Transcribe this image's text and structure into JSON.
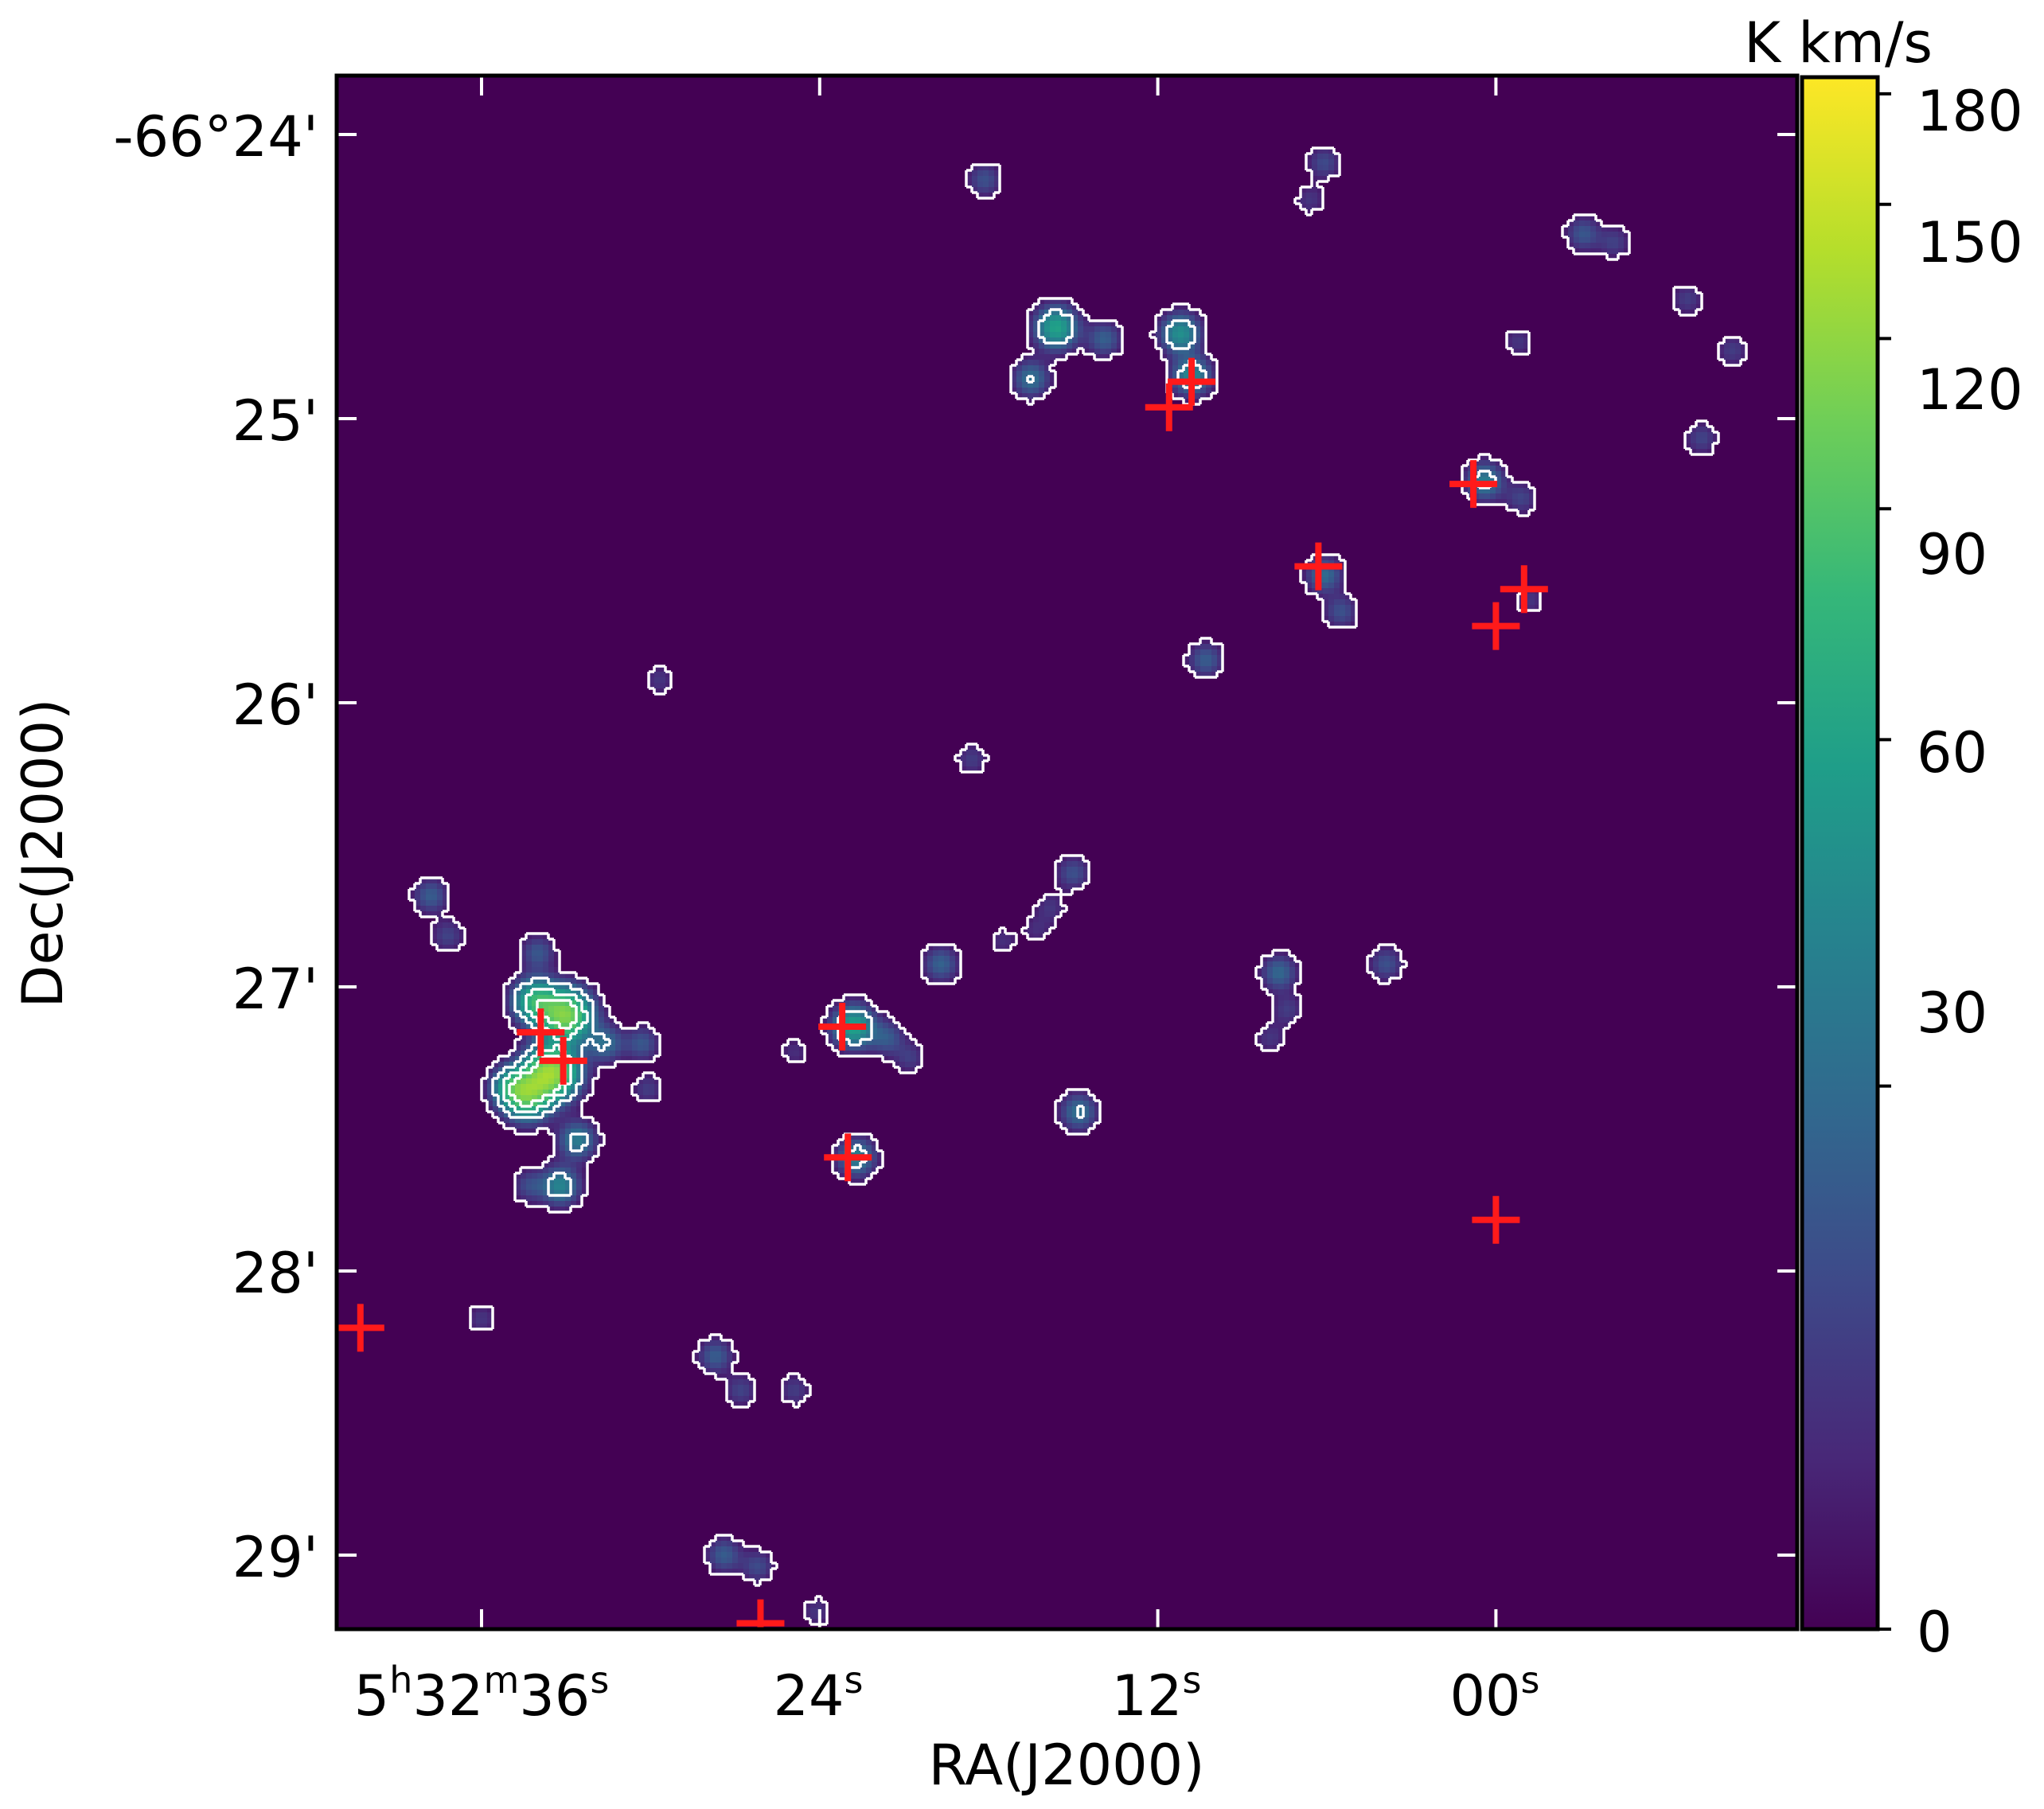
{
  "chart_data": {
    "type": "heatmap",
    "xlabel": "RA(J2000)",
    "ylabel": "Dec(J2000)",
    "x_ticks": [
      {
        "label_main": "5",
        "sup1": "h",
        "mid": "32",
        "sup2": "m",
        "end": "36",
        "sup3": "s"
      },
      {
        "label_main": "24",
        "sup1": "s"
      },
      {
        "label_main": "12",
        "sup1": "s"
      },
      {
        "label_main": "00",
        "sup1": "s"
      }
    ],
    "y_ticks": [
      "-66°24'",
      "25'",
      "26'",
      "27'",
      "28'",
      "29'"
    ],
    "y_tick_arcmin": [
      24,
      25,
      26,
      27,
      28,
      29
    ],
    "x_tick_seconds": [
      36,
      24,
      12,
      0
    ],
    "colorbar": {
      "label": "K km/s",
      "ticks": [
        "180",
        "150",
        "120",
        "90",
        "60",
        "30",
        "0"
      ],
      "tick_values": [
        180,
        150,
        120,
        90,
        60,
        30,
        0
      ],
      "scale": "asinh",
      "colormap": "viridis",
      "colors": [
        "#440154",
        "#482878",
        "#3e4989",
        "#31688e",
        "#26828e",
        "#1f9e89",
        "#35b779",
        "#6ece58",
        "#b5de2b",
        "#fde725"
      ]
    },
    "background_color": "#440154",
    "contour_color": "#ffffff",
    "marker_color": "#ff1a1a",
    "clumps": [
      {
        "ra_s": 18.15,
        "dec": 24.16,
        "peak": 20
      },
      {
        "ra_s": 6.1,
        "dec": 24.1,
        "peak": 18
      },
      {
        "ra_s": 6.6,
        "dec": 24.23,
        "peak": 12
      },
      {
        "ra_s": -3.1,
        "dec": 24.35,
        "peak": 22
      },
      {
        "ra_s": -4.2,
        "dec": 24.38,
        "peak": 15
      },
      {
        "ra_s": -6.8,
        "dec": 24.58,
        "peak": 14
      },
      {
        "ra_s": 15.6,
        "dec": 24.68,
        "peak": 60
      },
      {
        "ra_s": 13.9,
        "dec": 24.72,
        "peak": 25
      },
      {
        "ra_s": 16.5,
        "dec": 24.86,
        "peak": 32
      },
      {
        "ra_s": 11.2,
        "dec": 24.7,
        "peak": 48
      },
      {
        "ra_s": 10.8,
        "dec": 24.85,
        "peak": 45
      },
      {
        "ra_s": -0.8,
        "dec": 24.73,
        "peak": 12
      },
      {
        "ra_s": -8.4,
        "dec": 24.76,
        "peak": 14
      },
      {
        "ra_s": -7.3,
        "dec": 25.07,
        "peak": 16
      },
      {
        "ra_s": 0.4,
        "dec": 25.22,
        "peak": 38
      },
      {
        "ra_s": -0.9,
        "dec": 25.28,
        "peak": 16
      },
      {
        "ra_s": 6.1,
        "dec": 25.55,
        "peak": 30
      },
      {
        "ra_s": 5.5,
        "dec": 25.68,
        "peak": 20
      },
      {
        "ra_s": -1.2,
        "dec": 25.64,
        "peak": 12
      },
      {
        "ra_s": 10.3,
        "dec": 25.85,
        "peak": 24
      },
      {
        "ra_s": 29.7,
        "dec": 25.92,
        "peak": 12
      },
      {
        "ra_s": 18.6,
        "dec": 26.2,
        "peak": 14
      },
      {
        "ra_s": 37.8,
        "dec": 26.68,
        "peak": 24
      },
      {
        "ra_s": 37.2,
        "dec": 26.82,
        "peak": 16
      },
      {
        "ra_s": 15.0,
        "dec": 26.6,
        "peak": 20
      },
      {
        "ra_s": 15.8,
        "dec": 26.72,
        "peak": 12
      },
      {
        "ra_s": 19.7,
        "dec": 26.92,
        "peak": 26
      },
      {
        "ra_s": 17.5,
        "dec": 26.84,
        "peak": 10
      },
      {
        "ra_s": 16.3,
        "dec": 26.8,
        "peak": 10
      },
      {
        "ra_s": 7.7,
        "dec": 26.95,
        "peak": 28
      },
      {
        "ra_s": 7.4,
        "dec": 27.08,
        "peak": 14
      },
      {
        "ra_s": 8.0,
        "dec": 27.18,
        "peak": 12
      },
      {
        "ra_s": 3.9,
        "dec": 26.92,
        "peak": 20
      },
      {
        "ra_s": 33.5,
        "dec": 27.3,
        "peak": 120
      },
      {
        "ra_s": 33.0,
        "dec": 27.1,
        "peak": 110
      },
      {
        "ra_s": 34.1,
        "dec": 27.05,
        "peak": 70
      },
      {
        "ra_s": 34.4,
        "dec": 27.38,
        "peak": 90
      },
      {
        "ra_s": 35.0,
        "dec": 27.35,
        "peak": 40
      },
      {
        "ra_s": 34.0,
        "dec": 26.88,
        "peak": 22
      },
      {
        "ra_s": 31.6,
        "dec": 27.2,
        "peak": 30
      },
      {
        "ra_s": 30.3,
        "dec": 27.2,
        "peak": 22
      },
      {
        "ra_s": 30.1,
        "dec": 27.36,
        "peak": 14
      },
      {
        "ra_s": 32.6,
        "dec": 27.54,
        "peak": 38
      },
      {
        "ra_s": 33.2,
        "dec": 27.7,
        "peak": 42
      },
      {
        "ra_s": 34.3,
        "dec": 27.7,
        "peak": 18
      },
      {
        "ra_s": 22.8,
        "dec": 27.14,
        "peak": 60
      },
      {
        "ra_s": 21.6,
        "dec": 27.18,
        "peak": 22
      },
      {
        "ra_s": 20.8,
        "dec": 27.25,
        "peak": 14
      },
      {
        "ra_s": 24.9,
        "dec": 27.23,
        "peak": 10
      },
      {
        "ra_s": 22.7,
        "dec": 27.6,
        "peak": 40
      },
      {
        "ra_s": 14.8,
        "dec": 27.44,
        "peak": 32
      },
      {
        "ra_s": 36.0,
        "dec": 28.17,
        "peak": 12
      },
      {
        "ra_s": 27.7,
        "dec": 28.3,
        "peak": 24
      },
      {
        "ra_s": 26.8,
        "dec": 28.42,
        "peak": 16
      },
      {
        "ra_s": 24.9,
        "dec": 28.42,
        "peak": 14
      },
      {
        "ra_s": 27.4,
        "dec": 29.0,
        "peak": 24
      },
      {
        "ra_s": 26.2,
        "dec": 29.04,
        "peak": 18
      },
      {
        "ra_s": 24.1,
        "dec": 29.2,
        "peak": 12
      }
    ],
    "markers": [
      {
        "ra_s": 10.8,
        "dec": 24.87
      },
      {
        "ra_s": 11.6,
        "dec": 24.96
      },
      {
        "ra_s": 0.8,
        "dec": 25.23
      },
      {
        "ra_s": 6.3,
        "dec": 25.52
      },
      {
        "ra_s": -1.0,
        "dec": 25.6
      },
      {
        "ra_s": 0.0,
        "dec": 25.73
      },
      {
        "ra_s": 33.9,
        "dec": 27.16
      },
      {
        "ra_s": 33.1,
        "dec": 27.26
      },
      {
        "ra_s": 23.2,
        "dec": 27.14
      },
      {
        "ra_s": 23.0,
        "dec": 27.6
      },
      {
        "ra_s": 0.0,
        "dec": 27.82
      },
      {
        "ra_s": 40.3,
        "dec": 28.2
      },
      {
        "ra_s": 26.1,
        "dec": 29.24
      }
    ]
  }
}
